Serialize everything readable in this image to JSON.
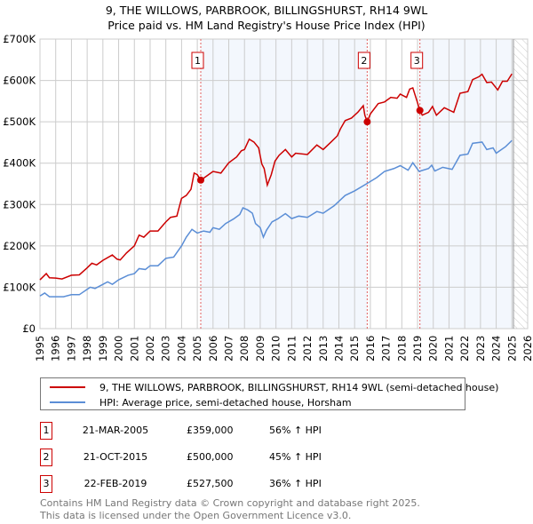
{
  "chart_data": {
    "type": "line",
    "title": "9, THE WILLOWS, PARBROOK, BILLINGSHURST, RH14 9WL",
    "subtitle": "Price paid vs. HM Land Registry's House Price Index (HPI)",
    "xlim": [
      1995,
      2026
    ],
    "ylim": [
      0,
      700000
    ],
    "y_ticks": [
      {
        "v": 0,
        "label": "£0"
      },
      {
        "v": 100000,
        "label": "£100K"
      },
      {
        "v": 200000,
        "label": "£200K"
      },
      {
        "v": 300000,
        "label": "£300K"
      },
      {
        "v": 400000,
        "label": "£400K"
      },
      {
        "v": 500000,
        "label": "£500K"
      },
      {
        "v": 600000,
        "label": "£600K"
      },
      {
        "v": 700000,
        "label": "£700K"
      }
    ],
    "x_ticks": [
      "1995",
      "1996",
      "1997",
      "1998",
      "1999",
      "2000",
      "2001",
      "2002",
      "2003",
      "2004",
      "2005",
      "2006",
      "2007",
      "2008",
      "2009",
      "2010",
      "2011",
      "2012",
      "2013",
      "2014",
      "2015",
      "2016",
      "2017",
      "2018",
      "2019",
      "2020",
      "2021",
      "2022",
      "2023",
      "2024",
      "2025",
      "2026"
    ],
    "grid": true,
    "forecast_hatch_from": 2025.1,
    "series": [
      {
        "name": "9, THE WILLOWS, PARBROOK, BILLINGSHURST, RH14 9WL (semi-detached house)",
        "color": "#cc0000",
        "points": [
          [
            1995,
            118
          ],
          [
            1995.4,
            133
          ],
          [
            1995.6,
            123
          ],
          [
            1996,
            122
          ],
          [
            1996.4,
            120
          ],
          [
            1997,
            129
          ],
          [
            1997.5,
            130
          ],
          [
            1998,
            147
          ],
          [
            1998.3,
            158
          ],
          [
            1998.6,
            154
          ],
          [
            1999,
            165
          ],
          [
            1999.6,
            178
          ],
          [
            1999.9,
            168
          ],
          [
            2000.1,
            166
          ],
          [
            2000.5,
            183
          ],
          [
            2001,
            200
          ],
          [
            2001.3,
            226
          ],
          [
            2001.6,
            221
          ],
          [
            2002,
            236
          ],
          [
            2002.5,
            236
          ],
          [
            2003,
            258
          ],
          [
            2003.3,
            269
          ],
          [
            2003.7,
            272
          ],
          [
            2004,
            315
          ],
          [
            2004.3,
            322
          ],
          [
            2004.6,
            337
          ],
          [
            2004.8,
            376
          ],
          [
            2005,
            372
          ],
          [
            2005.22,
            359
          ],
          [
            2005.6,
            369
          ],
          [
            2006,
            380
          ],
          [
            2006.5,
            376
          ],
          [
            2007,
            401
          ],
          [
            2007.5,
            415
          ],
          [
            2007.8,
            430
          ],
          [
            2008,
            433
          ],
          [
            2008.3,
            458
          ],
          [
            2008.6,
            451
          ],
          [
            2008.9,
            437
          ],
          [
            2009.1,
            398
          ],
          [
            2009.25,
            387
          ],
          [
            2009.45,
            347
          ],
          [
            2009.7,
            372
          ],
          [
            2009.94,
            405
          ],
          [
            2010.2,
            419
          ],
          [
            2010.6,
            433
          ],
          [
            2011,
            415
          ],
          [
            2011.25,
            424
          ],
          [
            2012,
            421
          ],
          [
            2012.6,
            444
          ],
          [
            2013,
            433
          ],
          [
            2013.5,
            451
          ],
          [
            2013.9,
            466
          ],
          [
            2014.1,
            483
          ],
          [
            2014.4,
            503
          ],
          [
            2014.8,
            509
          ],
          [
            2015.2,
            523
          ],
          [
            2015.55,
            539
          ],
          [
            2015.65,
            516
          ],
          [
            2015.8,
            500
          ],
          [
            2016,
            519
          ],
          [
            2016.5,
            544
          ],
          [
            2016.9,
            548
          ],
          [
            2017.3,
            559
          ],
          [
            2017.7,
            557
          ],
          [
            2017.9,
            567
          ],
          [
            2018.3,
            559
          ],
          [
            2018.5,
            579
          ],
          [
            2018.7,
            582
          ],
          [
            2018.95,
            552
          ],
          [
            2019.15,
            527.5
          ],
          [
            2019.3,
            516
          ],
          [
            2019.7,
            523
          ],
          [
            2019.95,
            537
          ],
          [
            2020.2,
            516
          ],
          [
            2020.7,
            534
          ],
          [
            2021.3,
            523
          ],
          [
            2021.7,
            569
          ],
          [
            2022.2,
            573
          ],
          [
            2022.5,
            602
          ],
          [
            2022.9,
            609
          ],
          [
            2023.1,
            615
          ],
          [
            2023.4,
            595
          ],
          [
            2023.7,
            596
          ],
          [
            2024.1,
            577
          ],
          [
            2024.4,
            598
          ],
          [
            2024.7,
            598
          ],
          [
            2025,
            616
          ]
        ]
      },
      {
        "name": "HPI: Average price, semi-detached house, Horsham",
        "color": "#5b8ed6",
        "points": [
          [
            1995,
            79
          ],
          [
            1995.3,
            86
          ],
          [
            1995.6,
            77
          ],
          [
            1996,
            77
          ],
          [
            1996.5,
            77
          ],
          [
            1997,
            82
          ],
          [
            1997.5,
            82
          ],
          [
            1998,
            95
          ],
          [
            1998.2,
            100
          ],
          [
            1998.5,
            97
          ],
          [
            1999,
            107
          ],
          [
            1999.3,
            113
          ],
          [
            1999.6,
            107
          ],
          [
            2000,
            118
          ],
          [
            2000.6,
            129
          ],
          [
            2001,
            133
          ],
          [
            2001.3,
            145
          ],
          [
            2001.7,
            143
          ],
          [
            2002,
            152
          ],
          [
            2002.5,
            152
          ],
          [
            2003,
            170
          ],
          [
            2003.5,
            173
          ],
          [
            2004,
            200
          ],
          [
            2004.3,
            221
          ],
          [
            2004.66,
            240
          ],
          [
            2005,
            231
          ],
          [
            2005.4,
            236
          ],
          [
            2005.8,
            233
          ],
          [
            2006,
            244
          ],
          [
            2006.4,
            240
          ],
          [
            2006.8,
            254
          ],
          [
            2007.3,
            265
          ],
          [
            2007.7,
            276
          ],
          [
            2007.9,
            292
          ],
          [
            2008.2,
            287
          ],
          [
            2008.5,
            279
          ],
          [
            2008.7,
            254
          ],
          [
            2009,
            244
          ],
          [
            2009.2,
            221
          ],
          [
            2009.4,
            238
          ],
          [
            2009.75,
            258
          ],
          [
            2010.1,
            265
          ],
          [
            2010.6,
            278
          ],
          [
            2011,
            266
          ],
          [
            2011.45,
            272
          ],
          [
            2012,
            269
          ],
          [
            2012.6,
            283
          ],
          [
            2013,
            279
          ],
          [
            2013.7,
            297
          ],
          [
            2014.4,
            322
          ],
          [
            2015,
            333
          ],
          [
            2015.8,
            351
          ],
          [
            2016.4,
            365
          ],
          [
            2016.9,
            380
          ],
          [
            2017.5,
            387
          ],
          [
            2017.9,
            394
          ],
          [
            2018.4,
            383
          ],
          [
            2018.7,
            401
          ],
          [
            2019.1,
            380
          ],
          [
            2019.7,
            387
          ],
          [
            2019.9,
            395
          ],
          [
            2020.1,
            381
          ],
          [
            2020.6,
            390
          ],
          [
            2021.2,
            385
          ],
          [
            2021.7,
            419
          ],
          [
            2022.2,
            422
          ],
          [
            2022.5,
            448
          ],
          [
            2023.1,
            451
          ],
          [
            2023.4,
            433
          ],
          [
            2023.8,
            437
          ],
          [
            2024,
            424
          ],
          [
            2024.6,
            440
          ],
          [
            2025,
            455
          ]
        ]
      }
    ],
    "sales": [
      {
        "num": "1",
        "x": 2005.22,
        "value": 359000,
        "date": "21-MAR-2005",
        "price": "£359,000",
        "hpi": "56% ↑ HPI"
      },
      {
        "num": "2",
        "x": 2015.8,
        "value": 500000,
        "date": "21-OCT-2015",
        "price": "£500,000",
        "hpi": "45% ↑ HPI"
      },
      {
        "num": "3",
        "x": 2019.15,
        "value": 527500,
        "date": "22-FEB-2019",
        "price": "£527,500",
        "hpi": "36% ↑ HPI"
      }
    ],
    "legend_placement": "below"
  },
  "footer": {
    "line1": "Contains HM Land Registry data © Crown copyright and database right 2025.",
    "line2": "This data is licensed under the Open Government Licence v3.0."
  }
}
